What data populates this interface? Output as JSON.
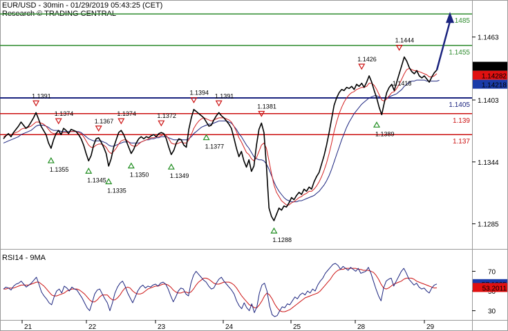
{
  "header": {
    "line1": "EUR/USD - 30min - 01/29/2019 05:43:25 (CET)",
    "line2": "Research © TRADING CENTRAL"
  },
  "colors": {
    "resistance": "#2e8b2e",
    "pivot": "#cc1111",
    "support_line": "#1a237e",
    "price": "#000000",
    "ma_fast": "#d42020",
    "ma_slow": "#1a237e",
    "rsi": "#1a237e",
    "rsi_ma": "#cc1111",
    "arrow": "#1a237e",
    "up_marker": "#1e8c1e",
    "down_marker": "#cc1111"
  },
  "chart_data": [
    {
      "type": "line",
      "title": "EUR/USD - 30min",
      "ylim": [
        1.1265,
        1.1495
      ],
      "x_labels": [
        "21",
        "22",
        "23",
        "24",
        "25",
        "28",
        "29"
      ],
      "y_ticks": [
        "1.1463",
        "1.1403",
        "1.1344",
        "1.1285"
      ],
      "y_tick_values": [
        1.1463,
        1.1403,
        1.1344,
        1.1285
      ],
      "levels": [
        {
          "label": "1.1485",
          "value": 1.1485,
          "kind": "resistance"
        },
        {
          "label": "1.1455",
          "value": 1.1455,
          "kind": "resistance"
        },
        {
          "label": "1.1405",
          "value": 1.1405,
          "kind": "support"
        },
        {
          "label": "1.139",
          "value": 1.139,
          "kind": "pivot"
        },
        {
          "label": "1.137",
          "value": 1.137,
          "kind": "pivot"
        }
      ],
      "last_price_labels": [
        {
          "label": "1.14315",
          "value": 1.14315,
          "style": "black"
        },
        {
          "label": "1.14282",
          "value": 1.14282,
          "style": "red"
        },
        {
          "label": "1.14218",
          "value": 1.14218,
          "style": "blue"
        }
      ],
      "price": [
        1.1366,
        1.1369,
        1.1371,
        1.1368,
        1.1372,
        1.1375,
        1.1378,
        1.1382,
        1.1379,
        1.1376,
        1.1378,
        1.1382,
        1.1386,
        1.1391,
        1.1385,
        1.1378,
        1.1374,
        1.137,
        1.1362,
        1.1357,
        1.1365,
        1.1371,
        1.1374,
        1.137,
        1.1376,
        1.1374,
        1.1371,
        1.1375,
        1.1374,
        1.1373,
        1.137,
        1.1366,
        1.136,
        1.1352,
        1.1345,
        1.135,
        1.136,
        1.1366,
        1.1367,
        1.1363,
        1.1358,
        1.1352,
        1.134,
        1.1347,
        1.1358,
        1.1365,
        1.1372,
        1.1374,
        1.137,
        1.1364,
        1.1358,
        1.1352,
        1.1356,
        1.1362,
        1.1366,
        1.1368,
        1.1366,
        1.1368,
        1.1367,
        1.1369,
        1.137,
        1.1368,
        1.1371,
        1.1372,
        1.1371,
        1.1366,
        1.1358,
        1.1351,
        1.1355,
        1.1362,
        1.1366,
        1.1365,
        1.136,
        1.1358,
        1.1375,
        1.1386,
        1.1394,
        1.1392,
        1.139,
        1.1388,
        1.1386,
        1.1382,
        1.1378,
        1.1379,
        1.1384,
        1.1388,
        1.1391,
        1.1388,
        1.1386,
        1.1383,
        1.138,
        1.1376,
        1.1367,
        1.1357,
        1.1349,
        1.1354,
        1.1345,
        1.1339,
        1.1346,
        1.1335,
        1.134,
        1.136,
        1.1375,
        1.1381,
        1.1372,
        1.134,
        1.13,
        1.1292,
        1.1288,
        1.1294,
        1.13,
        1.1298,
        1.1302,
        1.1301,
        1.1305,
        1.131,
        1.1308,
        1.1312,
        1.1315,
        1.1313,
        1.1318,
        1.1316,
        1.132,
        1.1318,
        1.1325,
        1.133,
        1.1334,
        1.1342,
        1.135,
        1.136,
        1.1372,
        1.1385,
        1.1398,
        1.1405,
        1.141,
        1.1413,
        1.1412,
        1.1415,
        1.1414,
        1.1416,
        1.1413,
        1.1418,
        1.1416,
        1.1419,
        1.1415,
        1.142,
        1.1426,
        1.142,
        1.1412,
        1.1405,
        1.1396,
        1.1389,
        1.14,
        1.141,
        1.1415,
        1.1418,
        1.1412,
        1.142,
        1.1428,
        1.1436,
        1.1444,
        1.144,
        1.1434,
        1.143,
        1.1428,
        1.1431,
        1.1426,
        1.1424,
        1.1426,
        1.1423,
        1.142,
        1.1425,
        1.1429,
        1.14315
      ],
      "ma_fast": [
        1.1368,
        1.1369,
        1.137,
        1.137,
        1.1371,
        1.1372,
        1.1373,
        1.1375,
        1.1376,
        1.1376,
        1.1377,
        1.1378,
        1.138,
        1.1382,
        1.1382,
        1.1381,
        1.138,
        1.1378,
        1.1375,
        1.1372,
        1.1371,
        1.1371,
        1.1371,
        1.1371,
        1.1372,
        1.1372,
        1.1372,
        1.1373,
        1.1373,
        1.1373,
        1.1372,
        1.1371,
        1.1368,
        1.1364,
        1.136,
        1.1358,
        1.1358,
        1.136,
        1.1361,
        1.1361,
        1.136,
        1.1358,
        1.1354,
        1.1352,
        1.1354,
        1.1357,
        1.1361,
        1.1364,
        1.1365,
        1.1365,
        1.1363,
        1.136,
        1.1359,
        1.1359,
        1.1361,
        1.1363,
        1.1364,
        1.1365,
        1.1366,
        1.1367,
        1.1367,
        1.1368,
        1.1368,
        1.1369,
        1.137,
        1.1369,
        1.1366,
        1.1362,
        1.1361,
        1.1361,
        1.1362,
        1.1363,
        1.1362,
        1.1362,
        1.1365,
        1.137,
        1.1376,
        1.138,
        1.1383,
        1.1385,
        1.1386,
        1.1385,
        1.1384,
        1.1383,
        1.1384,
        1.1385,
        1.1386,
        1.1386,
        1.1386,
        1.1385,
        1.1384,
        1.1382,
        1.1378,
        1.1373,
        1.1367,
        1.1363,
        1.1358,
        1.1353,
        1.1351,
        1.1347,
        1.1345,
        1.1348,
        1.1354,
        1.136,
        1.1362,
        1.1357,
        1.1345,
        1.1333,
        1.1322,
        1.1315,
        1.1311,
        1.1307,
        1.1305,
        1.1303,
        1.1303,
        1.1305,
        1.1306,
        1.1308,
        1.131,
        1.1311,
        1.1313,
        1.1314,
        1.1316,
        1.1316,
        1.1318,
        1.1321,
        1.1325,
        1.133,
        1.1336,
        1.1343,
        1.1352,
        1.1362,
        1.1373,
        1.1382,
        1.139,
        1.1396,
        1.1401,
        1.1405,
        1.1408,
        1.141,
        1.1411,
        1.1413,
        1.1414,
        1.1415,
        1.1415,
        1.1416,
        1.1419,
        1.1419,
        1.1417,
        1.1413,
        1.1408,
        1.1403,
        1.1402,
        1.1404,
        1.1407,
        1.141,
        1.1411,
        1.1414,
        1.1418,
        1.1423,
        1.1428,
        1.1432,
        1.1433,
        1.1432,
        1.1431,
        1.1431,
        1.143,
        1.1429,
        1.1428,
        1.1427,
        1.1425,
        1.1425,
        1.1426,
        1.14282
      ],
      "ma_slow": [
        1.1362,
        1.1363,
        1.1364,
        1.1365,
        1.1366,
        1.1367,
        1.1368,
        1.137,
        1.1371,
        1.1372,
        1.1373,
        1.1374,
        1.1376,
        1.1378,
        1.1379,
        1.1379,
        1.1379,
        1.1378,
        1.1377,
        1.1375,
        1.1374,
        1.1374,
        1.1374,
        1.1373,
        1.1373,
        1.1373,
        1.1373,
        1.1373,
        1.1373,
        1.1373,
        1.1373,
        1.1372,
        1.137,
        1.1368,
        1.1366,
        1.1365,
        1.1364,
        1.1364,
        1.1364,
        1.1364,
        1.1363,
        1.1362,
        1.136,
        1.1359,
        1.1359,
        1.136,
        1.1361,
        1.1362,
        1.1363,
        1.1363,
        1.1363,
        1.1362,
        1.1362,
        1.1362,
        1.1362,
        1.1363,
        1.1364,
        1.1365,
        1.1365,
        1.1366,
        1.1366,
        1.1367,
        1.1367,
        1.1368,
        1.1368,
        1.1368,
        1.1367,
        1.1366,
        1.1365,
        1.1365,
        1.1365,
        1.1365,
        1.1365,
        1.1365,
        1.1366,
        1.1368,
        1.1371,
        1.1373,
        1.1375,
        1.1377,
        1.1378,
        1.1379,
        1.138,
        1.138,
        1.1381,
        1.1382,
        1.1383,
        1.1383,
        1.1383,
        1.1383,
        1.1382,
        1.1381,
        1.1378,
        1.1375,
        1.1371,
        1.1368,
        1.1364,
        1.136,
        1.1357,
        1.1353,
        1.1349,
        1.1347,
        1.1346,
        1.1346,
        1.1345,
        1.1342,
        1.1337,
        1.1331,
        1.1325,
        1.132,
        1.1316,
        1.1313,
        1.131,
        1.1308,
        1.1307,
        1.1306,
        1.1306,
        1.1306,
        1.1307,
        1.1307,
        1.1308,
        1.1309,
        1.131,
        1.1311,
        1.1312,
        1.1314,
        1.1316,
        1.1319,
        1.1322,
        1.1326,
        1.1331,
        1.1337,
        1.1344,
        1.1351,
        1.1358,
        1.1365,
        1.1371,
        1.1377,
        1.1382,
        1.1386,
        1.139,
        1.1393,
        1.1396,
        1.1399,
        1.1401,
        1.1403,
        1.1405,
        1.1406,
        1.1407,
        1.1407,
        1.1406,
        1.1405,
        1.1405,
        1.1405,
        1.1406,
        1.1407,
        1.1408,
        1.1409,
        1.1411,
        1.1413,
        1.1416,
        1.1418,
        1.142,
        1.1421,
        1.1421,
        1.1422,
        1.1422,
        1.1422,
        1.1422,
        1.1421,
        1.1421,
        1.1421,
        1.1421,
        1.1421,
        1.14218
      ],
      "annotations": [
        {
          "label": "1.1391",
          "idx": 13,
          "value": 1.1391,
          "marker": "down"
        },
        {
          "label": "1.1374",
          "idx": 22,
          "value": 1.1374,
          "marker": "down"
        },
        {
          "label": "1.1367",
          "idx": 38,
          "value": 1.1367,
          "marker": "down"
        },
        {
          "label": "1.1374",
          "idx": 47,
          "value": 1.1374,
          "marker": "down"
        },
        {
          "label": "1.1372",
          "idx": 63,
          "value": 1.1372,
          "marker": "down"
        },
        {
          "label": "1.1394",
          "idx": 76,
          "value": 1.1394,
          "marker": "down"
        },
        {
          "label": "1.1391",
          "idx": 86,
          "value": 1.1391,
          "marker": "down"
        },
        {
          "label": "1.1381",
          "idx": 103,
          "value": 1.1381,
          "marker": "down"
        },
        {
          "label": "1.1426",
          "idx": 143,
          "value": 1.1426,
          "marker": "down"
        },
        {
          "label": "1.1444",
          "idx": 158,
          "value": 1.1444,
          "marker": "down"
        },
        {
          "label": "1.1418",
          "idx": 152,
          "value": 1.1418,
          "marker": "none"
        },
        {
          "label": "1.1355",
          "idx": 19,
          "value": 1.1355,
          "marker": "up"
        },
        {
          "label": "1.1345",
          "idx": 34,
          "value": 1.1345,
          "marker": "up"
        },
        {
          "label": "1.1335",
          "idx": 42,
          "value": 1.1335,
          "marker": "up"
        },
        {
          "label": "1.1350",
          "idx": 51,
          "value": 1.135,
          "marker": "up"
        },
        {
          "label": "1.1349",
          "idx": 67,
          "value": 1.1349,
          "marker": "up"
        },
        {
          "label": "1.1377",
          "idx": 81,
          "value": 1.1377,
          "marker": "up"
        },
        {
          "label": "1.1288",
          "idx": 108,
          "value": 1.1288,
          "marker": "up"
        },
        {
          "label": "1.1389",
          "idx": 149,
          "value": 1.1389,
          "marker": "up"
        }
      ]
    },
    {
      "type": "line",
      "title": "RSI14 - 9MA",
      "ylim": [
        22,
        85
      ],
      "y_ticks": [
        "70",
        "50",
        "30"
      ],
      "y_tick_values": [
        70,
        50,
        30
      ],
      "last_value_labels": [
        {
          "label": "57.1325",
          "value": 57.1325,
          "style": "blue"
        },
        {
          "label": "53.2011",
          "value": 53.2011,
          "style": "red"
        }
      ],
      "rsi": [
        52,
        54,
        53,
        51,
        55,
        57,
        58,
        60,
        57,
        54,
        56,
        58,
        61,
        64,
        57,
        49,
        45,
        42,
        38,
        36,
        44,
        50,
        52,
        48,
        55,
        53,
        50,
        54,
        52,
        51,
        47,
        43,
        38,
        33,
        30,
        38,
        47,
        51,
        52,
        47,
        42,
        38,
        30,
        38,
        48,
        54,
        58,
        60,
        55,
        48,
        43,
        38,
        44,
        50,
        54,
        56,
        53,
        55,
        54,
        56,
        57,
        55,
        58,
        59,
        57,
        52,
        45,
        39,
        44,
        50,
        53,
        52,
        47,
        45,
        58,
        66,
        70,
        67,
        64,
        61,
        59,
        55,
        52,
        53,
        58,
        62,
        64,
        60,
        57,
        54,
        51,
        47,
        40,
        35,
        32,
        38,
        33,
        30,
        37,
        28,
        34,
        48,
        56,
        58,
        50,
        35,
        26,
        24,
        25,
        30,
        34,
        33,
        37,
        36,
        40,
        44,
        42,
        46,
        48,
        46,
        50,
        48,
        52,
        50,
        56,
        60,
        63,
        68,
        71,
        74,
        77,
        78,
        76,
        72,
        75,
        73,
        71,
        74,
        72,
        70,
        73,
        68,
        69,
        70,
        74,
        68,
        60,
        52,
        45,
        40,
        53,
        60,
        62,
        63,
        55,
        60,
        65,
        70,
        73,
        68,
        62,
        59,
        56,
        58,
        54,
        52,
        53,
        50,
        48,
        53,
        56,
        57.1325
      ],
      "rsi_ma": [
        52,
        52,
        53,
        53,
        53,
        54,
        55,
        56,
        56,
        56,
        56,
        57,
        58,
        59,
        59,
        57,
        55,
        52,
        49,
        46,
        45,
        45,
        46,
        47,
        48,
        50,
        51,
        52,
        52,
        52,
        51,
        49,
        47,
        44,
        41,
        39,
        39,
        41,
        44,
        46,
        46,
        46,
        43,
        41,
        41,
        43,
        46,
        50,
        53,
        54,
        53,
        50,
        48,
        47,
        47,
        48,
        50,
        52,
        53,
        54,
        55,
        55,
        56,
        57,
        57,
        56,
        54,
        51,
        49,
        48,
        48,
        49,
        49,
        48,
        49,
        52,
        56,
        59,
        61,
        63,
        63,
        62,
        60,
        58,
        57,
        57,
        58,
        59,
        59,
        59,
        58,
        56,
        53,
        49,
        45,
        42,
        39,
        36,
        35,
        33,
        33,
        36,
        40,
        45,
        48,
        46,
        42,
        37,
        33,
        30,
        29,
        29,
        30,
        31,
        33,
        35,
        37,
        39,
        41,
        43,
        44,
        45,
        46,
        47,
        48,
        50,
        53,
        56,
        59,
        62,
        66,
        69,
        71,
        72,
        72,
        73,
        73,
        73,
        73,
        73,
        72,
        72,
        71,
        71,
        71,
        70,
        69,
        66,
        62,
        57,
        53,
        52,
        53,
        55,
        57,
        58,
        59,
        60,
        62,
        63,
        63,
        63,
        62,
        60,
        59,
        58,
        57,
        56,
        55,
        54,
        53,
        53.2011
      ]
    }
  ]
}
